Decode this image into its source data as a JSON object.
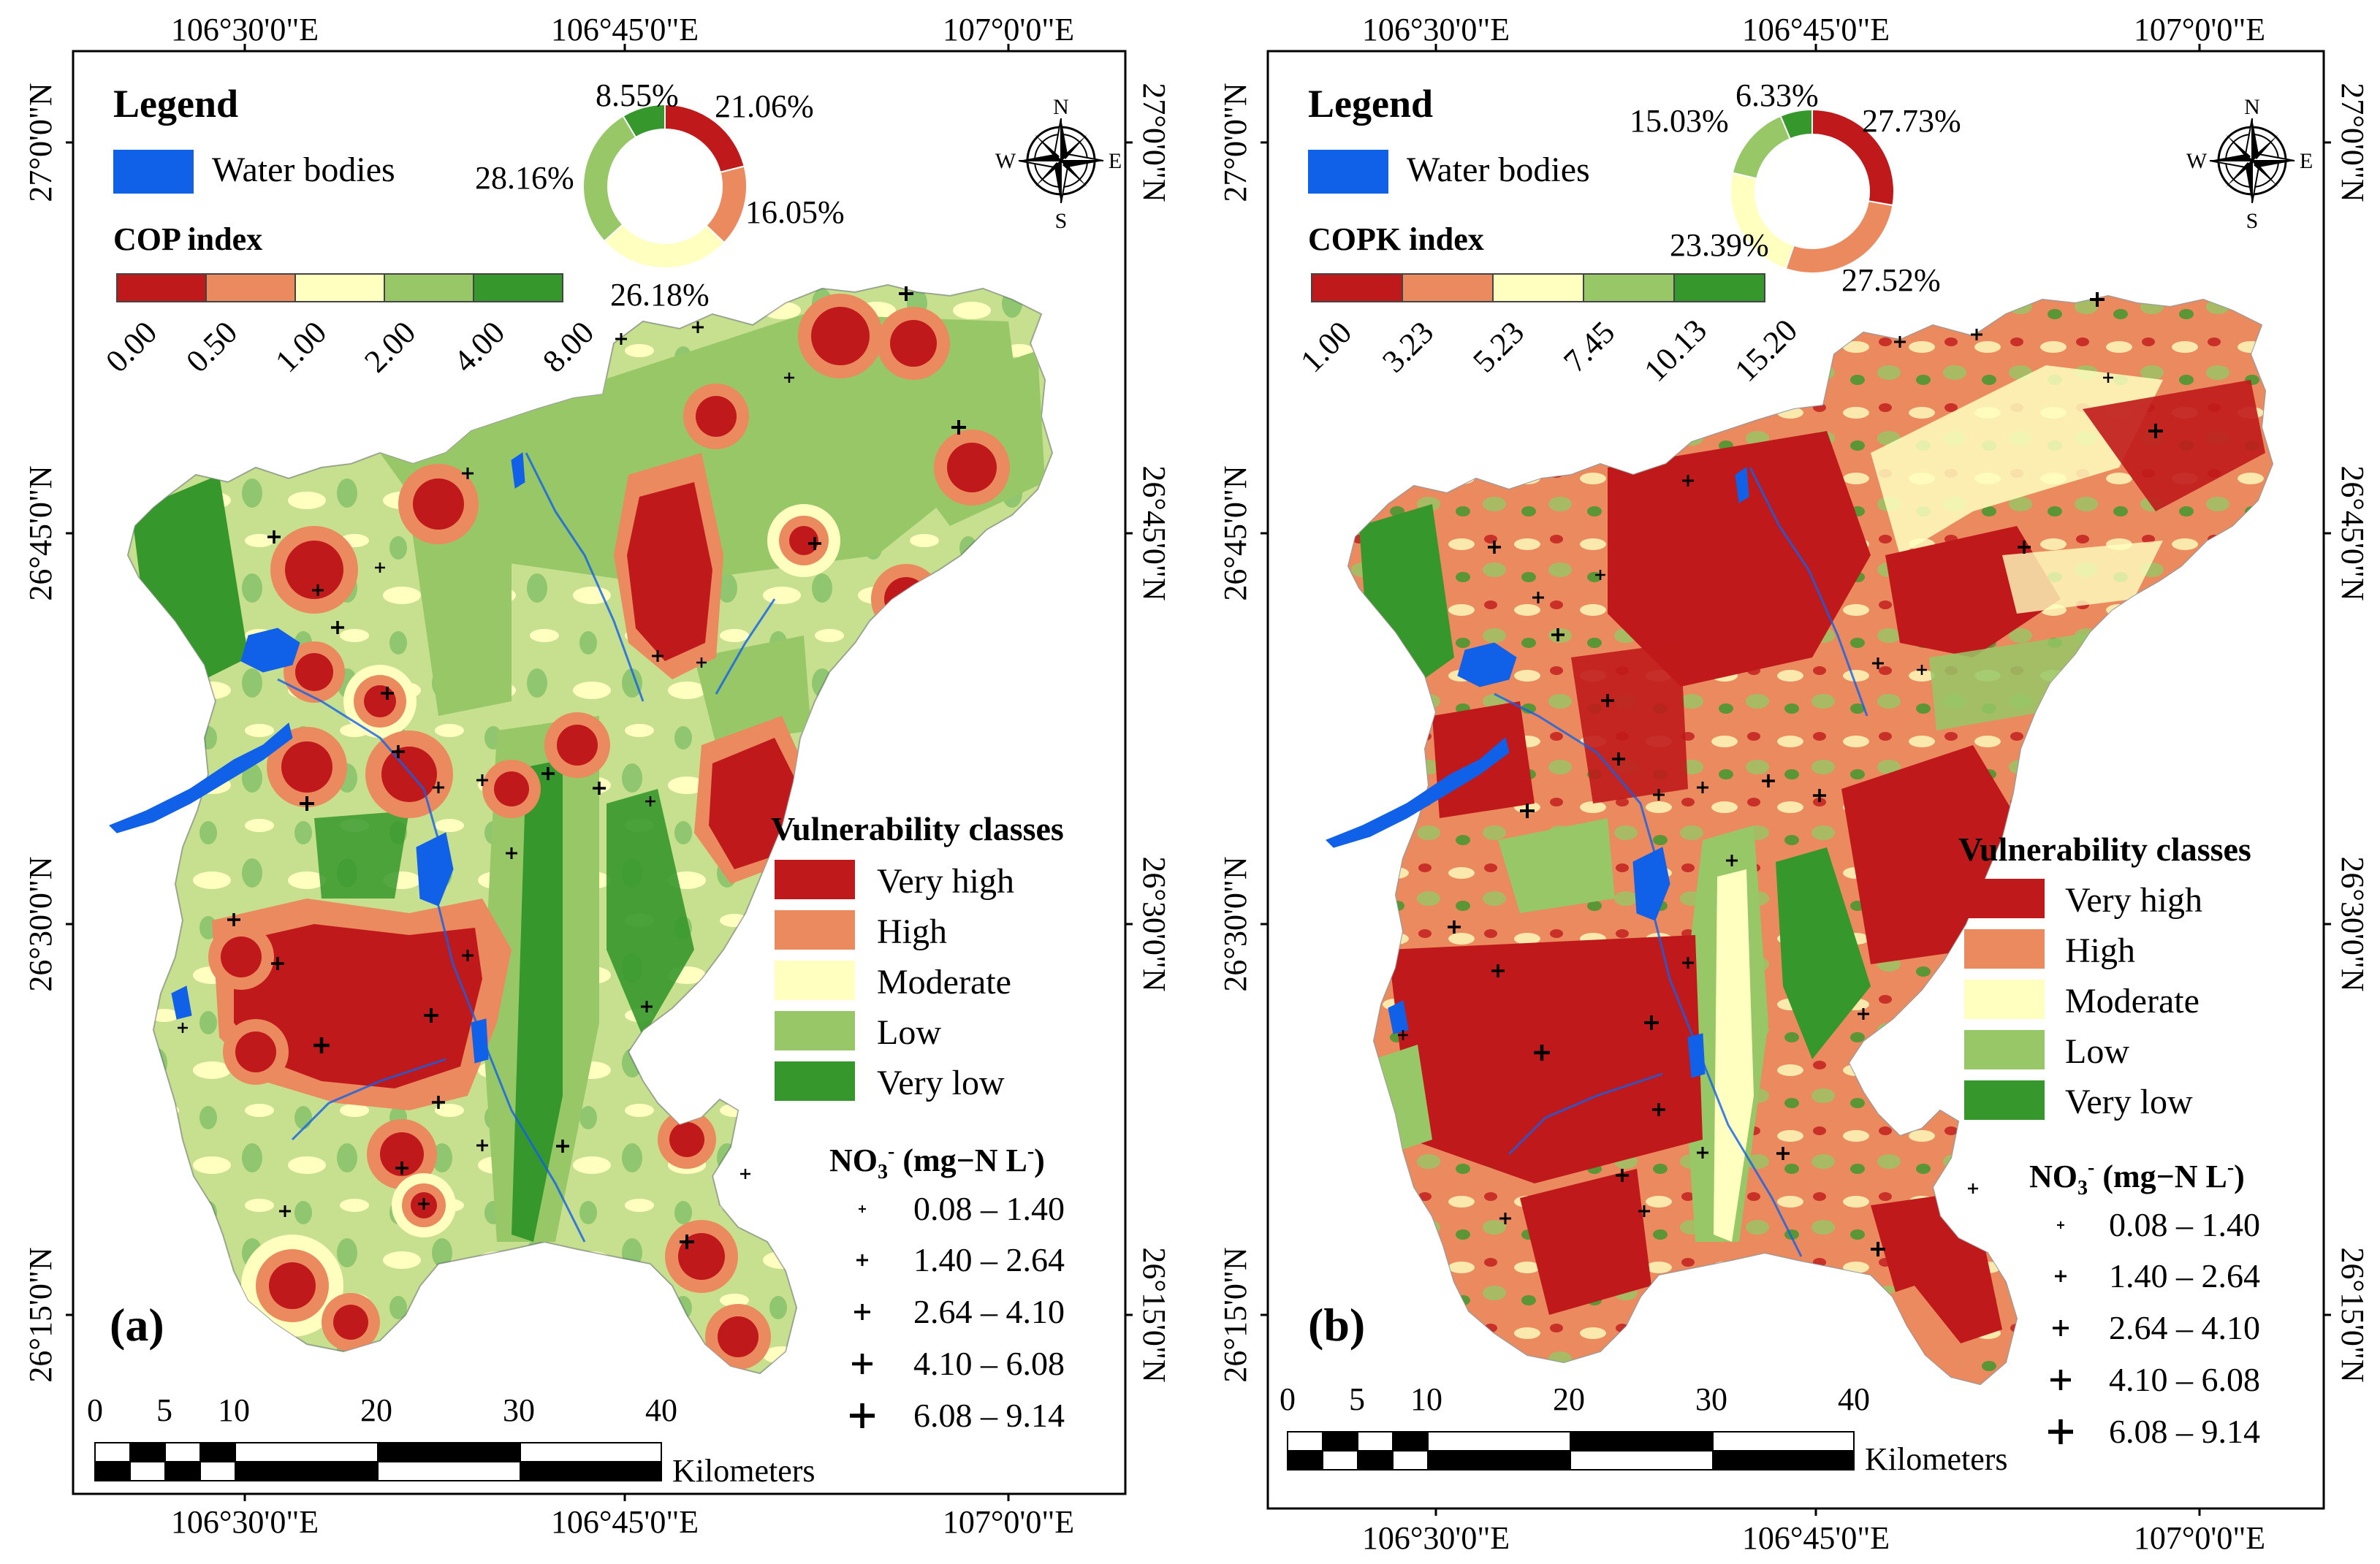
{
  "colors": {
    "very_high": "#c0191b",
    "high": "#ea8a5e",
    "moderate": "#ffffc0",
    "low": "#97c766",
    "very_low": "#36982c",
    "water": "#1160e8"
  },
  "coord_labels": {
    "lon": [
      "106°30'0\"E",
      "106°45'0\"E",
      "107°0'0\"E"
    ],
    "lat": [
      "27°0'0\"N",
      "26°45'0\"N",
      "26°30'0\"N",
      "26°15'0\"N"
    ]
  },
  "legend": {
    "title": "Legend",
    "water_label": "Water bodies",
    "classes_title": "Vulnerability classes",
    "classes": [
      "Very high",
      "High",
      "Moderate",
      "Low",
      "Very low"
    ],
    "no3_title_prefix": "NO",
    "no3_sub": "3",
    "no3_sup": "-",
    "no3_unit_a": " (mg−N L",
    "no3_unit_sup": "-",
    "no3_unit_b": ")",
    "no3_ranges": [
      "0.08 – 1.40",
      "1.40 – 2.64",
      "2.64 – 4.10",
      "4.10 – 6.08",
      "6.08 – 9.14"
    ]
  },
  "compass": {
    "n": "N",
    "s": "S",
    "e": "E",
    "w": "W"
  },
  "scalebar": {
    "labels": [
      "0",
      "5",
      "10",
      "20",
      "30",
      "40"
    ],
    "unit": "Kilometers"
  },
  "panels": [
    {
      "id": "a",
      "letter": "(a)",
      "index_title": "COP index",
      "index_ticks": [
        "0.00",
        "0.50",
        "1.00",
        "2.00",
        "4.00",
        "8.00"
      ],
      "donut": {
        "very_high": "21.06%",
        "high": "16.05%",
        "moderate": "26.18%",
        "low": "28.16%",
        "very_low": "8.55%",
        "values": [
          21.06,
          16.05,
          26.18,
          28.16,
          8.55
        ]
      }
    },
    {
      "id": "b",
      "letter": "(b)",
      "index_title": "COPK index",
      "index_ticks": [
        "1.00",
        "3.23",
        "5.23",
        "7.45",
        "10.13",
        "15.20"
      ],
      "donut": {
        "very_high": "27.73%",
        "high": "27.52%",
        "moderate": "23.39%",
        "low": "15.03%",
        "very_low": "6.33%",
        "values": [
          27.73,
          27.52,
          23.39,
          15.03,
          6.33
        ]
      }
    }
  ]
}
